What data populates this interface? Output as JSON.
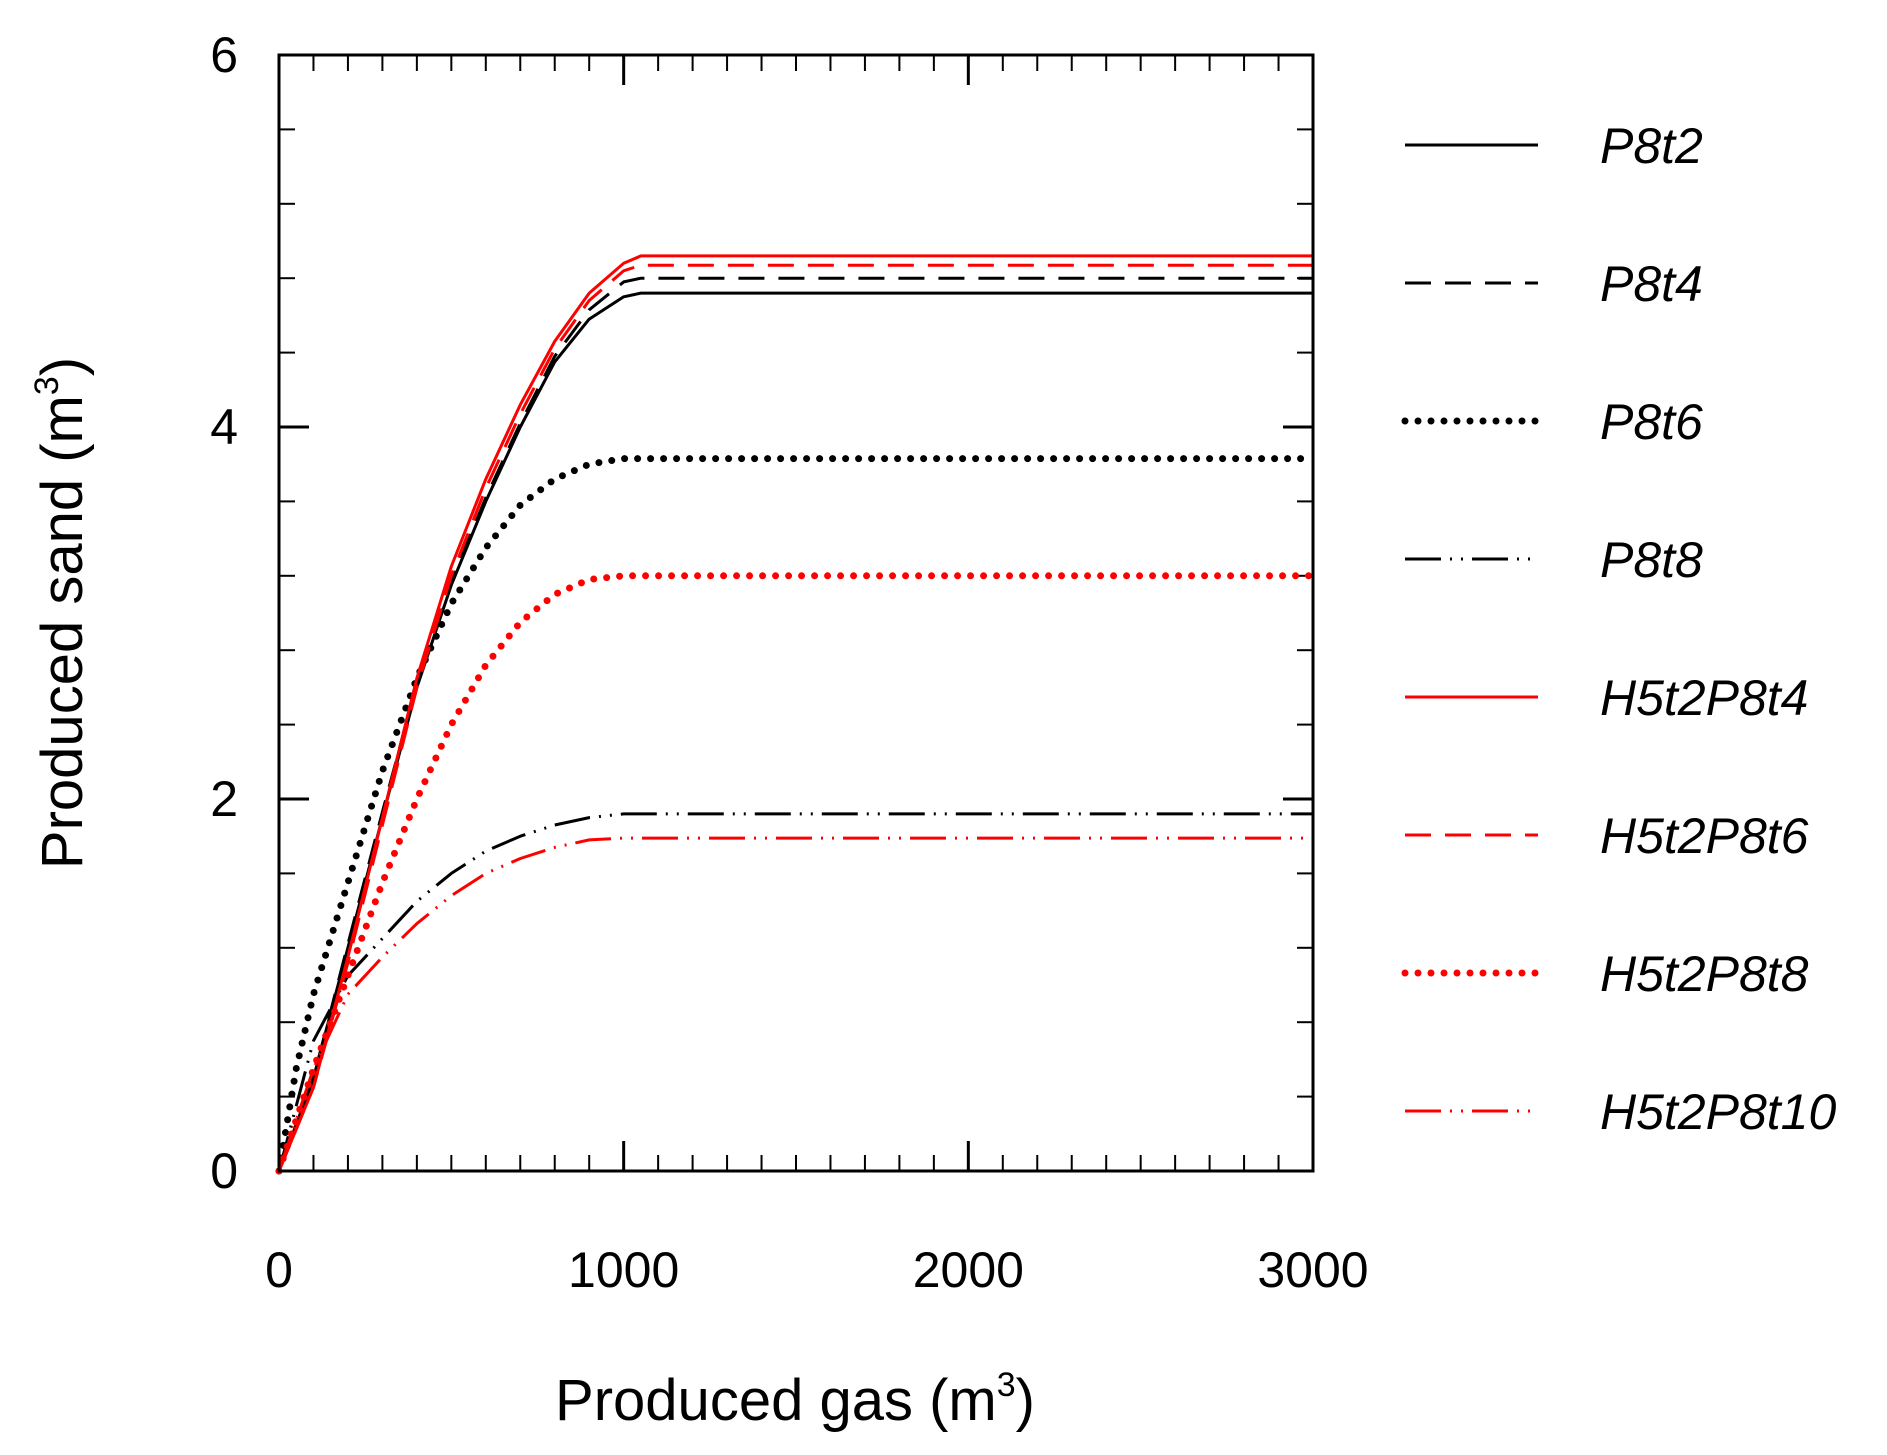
{
  "chart_data": {
    "type": "line",
    "title": "",
    "xlabel": "Produced gas (m",
    "ylabel": "Produced sand (m",
    "xlabel_unit_exp": "3",
    "ylabel_unit_exp": "3",
    "xlabel_close": ")",
    "ylabel_close": ")",
    "xlim": [
      0,
      3000
    ],
    "ylim": [
      0,
      6
    ],
    "xticks": [
      0,
      1000,
      2000,
      3000
    ],
    "yticks": [
      0,
      2,
      4,
      6
    ],
    "xtick_labels": [
      "0",
      "1000",
      "2000",
      "3000"
    ],
    "ytick_labels": [
      "0",
      "2",
      "4",
      "6"
    ],
    "x_minor_step": 100,
    "y_minor_step": 0.4,
    "grid": false,
    "legend_position": "right-outside",
    "series": [
      {
        "name": "P8t2",
        "color": "#000000",
        "dash": "solid",
        "points": [
          [
            0,
            0
          ],
          [
            100,
            0.5
          ],
          [
            200,
            1.2
          ],
          [
            300,
            1.9
          ],
          [
            400,
            2.6
          ],
          [
            500,
            3.15
          ],
          [
            600,
            3.6
          ],
          [
            700,
            4.0
          ],
          [
            800,
            4.35
          ],
          [
            900,
            4.58
          ],
          [
            1000,
            4.7
          ],
          [
            1050,
            4.72
          ],
          [
            3000,
            4.72
          ]
        ]
      },
      {
        "name": "P8t4",
        "color": "#000000",
        "dash": "dash",
        "points": [
          [
            0,
            0
          ],
          [
            100,
            0.5
          ],
          [
            200,
            1.22
          ],
          [
            300,
            1.93
          ],
          [
            400,
            2.62
          ],
          [
            500,
            3.17
          ],
          [
            600,
            3.62
          ],
          [
            700,
            4.02
          ],
          [
            800,
            4.38
          ],
          [
            900,
            4.63
          ],
          [
            1000,
            4.78
          ],
          [
            1050,
            4.8
          ],
          [
            3000,
            4.8
          ]
        ]
      },
      {
        "name": "P8t6",
        "color": "#000000",
        "dash": "dot",
        "points": [
          [
            0,
            0
          ],
          [
            50,
            0.55
          ],
          [
            100,
            0.95
          ],
          [
            200,
            1.55
          ],
          [
            300,
            2.15
          ],
          [
            400,
            2.65
          ],
          [
            500,
            3.05
          ],
          [
            600,
            3.35
          ],
          [
            700,
            3.58
          ],
          [
            800,
            3.72
          ],
          [
            900,
            3.8
          ],
          [
            1000,
            3.83
          ],
          [
            3000,
            3.83
          ]
        ]
      },
      {
        "name": "P8t8",
        "color": "#000000",
        "dash": "dashdotdot",
        "points": [
          [
            0,
            0
          ],
          [
            100,
            0.7
          ],
          [
            200,
            1.05
          ],
          [
            300,
            1.25
          ],
          [
            400,
            1.45
          ],
          [
            500,
            1.6
          ],
          [
            600,
            1.72
          ],
          [
            700,
            1.8
          ],
          [
            800,
            1.86
          ],
          [
            900,
            1.9
          ],
          [
            1000,
            1.92
          ],
          [
            3000,
            1.92
          ]
        ]
      },
      {
        "name": "H5t2P8t4",
        "color": "#ff0000",
        "dash": "solid",
        "points": [
          [
            0,
            0
          ],
          [
            100,
            0.45
          ],
          [
            200,
            1.15
          ],
          [
            300,
            1.9
          ],
          [
            400,
            2.65
          ],
          [
            500,
            3.25
          ],
          [
            600,
            3.72
          ],
          [
            700,
            4.12
          ],
          [
            800,
            4.46
          ],
          [
            900,
            4.72
          ],
          [
            1000,
            4.88
          ],
          [
            1050,
            4.92
          ],
          [
            3000,
            4.92
          ]
        ]
      },
      {
        "name": "H5t2P8t6",
        "color": "#ff0000",
        "dash": "dash",
        "points": [
          [
            0,
            0
          ],
          [
            100,
            0.45
          ],
          [
            200,
            1.12
          ],
          [
            300,
            1.86
          ],
          [
            400,
            2.6
          ],
          [
            500,
            3.2
          ],
          [
            600,
            3.67
          ],
          [
            700,
            4.07
          ],
          [
            800,
            4.42
          ],
          [
            900,
            4.68
          ],
          [
            1000,
            4.84
          ],
          [
            1050,
            4.87
          ],
          [
            3000,
            4.87
          ]
        ]
      },
      {
        "name": "H5t2P8t8",
        "color": "#ff0000",
        "dash": "dot",
        "points": [
          [
            0,
            0
          ],
          [
            100,
            0.55
          ],
          [
            200,
            1.05
          ],
          [
            300,
            1.55
          ],
          [
            400,
            2.0
          ],
          [
            500,
            2.4
          ],
          [
            600,
            2.72
          ],
          [
            700,
            2.95
          ],
          [
            800,
            3.1
          ],
          [
            900,
            3.18
          ],
          [
            1000,
            3.2
          ],
          [
            3000,
            3.2
          ]
        ]
      },
      {
        "name": "H5t2P8t10",
        "color": "#ff0000",
        "dash": "dashdotdot",
        "points": [
          [
            0,
            0
          ],
          [
            100,
            0.55
          ],
          [
            200,
            0.95
          ],
          [
            300,
            1.15
          ],
          [
            400,
            1.33
          ],
          [
            500,
            1.48
          ],
          [
            600,
            1.6
          ],
          [
            700,
            1.68
          ],
          [
            800,
            1.74
          ],
          [
            900,
            1.78
          ],
          [
            1000,
            1.79
          ],
          [
            3000,
            1.79
          ]
        ]
      }
    ]
  }
}
